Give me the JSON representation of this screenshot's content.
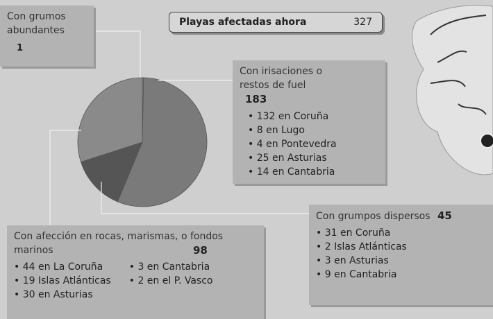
{
  "chart_data": {
    "type": "pie",
    "title": "Playas afectadas ahora",
    "total": 327,
    "categories": [
      "Con grumos abundantes",
      "Con irisaciones o restos de fuel",
      "Con grumpos dispersos",
      "Con afección en rocas, marismas, o fondos marinos"
    ],
    "values": [
      1,
      183,
      45,
      98
    ],
    "colors": [
      "#8c8c8c",
      "#7a7a7a",
      "#555555",
      "#8a8a8a"
    ],
    "details": [
      [],
      [
        "132 en Coruña",
        "8 en Lugo",
        "4 en Pontevedra",
        "25 en Asturias",
        "14 en Cantabria"
      ],
      [
        "31 en Coruña",
        "2 Islas Atlánticas",
        "3 en Asturias",
        "9 en Cantabria"
      ],
      [
        "44 en La Coruña",
        "19 Islas Atlánticas",
        "30 en Asturias",
        "3 en Cantabria",
        "2 en el P. Vasco"
      ]
    ]
  }
}
